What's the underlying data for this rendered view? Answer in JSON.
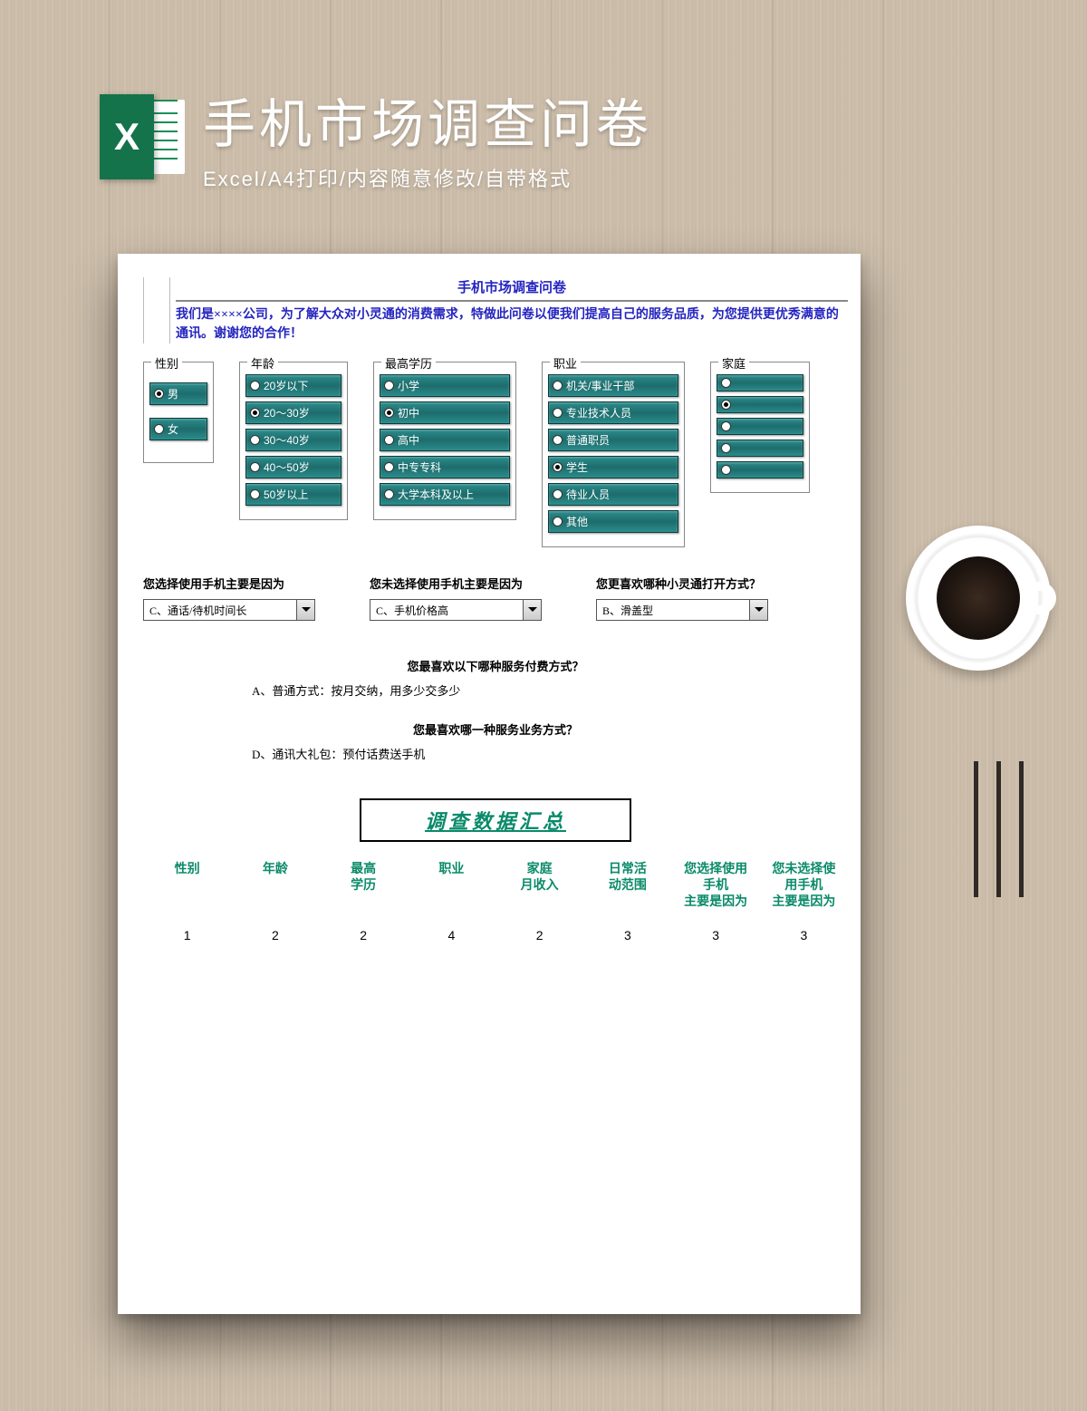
{
  "header": {
    "icon_letter": "X",
    "title": "手机市场调查问卷",
    "subtitle": "Excel/A4打印/内容随意修改/自带格式"
  },
  "doc": {
    "title": "手机市场调查问卷",
    "intro": "我们是××××公司，为了解大众对小灵通的消费需求，特做此问卷以便我们提高自己的服务品质，为您提供更优秀满意的通讯。谢谢您的合作！"
  },
  "groups": {
    "gender": {
      "legend": "性别",
      "opts": [
        "男",
        "女"
      ],
      "selected": 0
    },
    "age": {
      "legend": "年龄",
      "opts": [
        "20岁以下",
        "20～30岁",
        "30～40岁",
        "40～50岁",
        "50岁以上"
      ],
      "selected": 1
    },
    "edu": {
      "legend": "最高学历",
      "opts": [
        "小学",
        "初中",
        "高中",
        "中专专科",
        "大学本科及以上"
      ],
      "selected": 1
    },
    "job": {
      "legend": "职业",
      "opts": [
        "机关/事业干部",
        "专业技术人员",
        "普通职员",
        "学生",
        "待业人员",
        "其他"
      ],
      "selected": 3
    },
    "income": {
      "legend": "家庭",
      "opts": [
        "",
        "",
        "",
        "",
        ""
      ],
      "selected": 1
    }
  },
  "dropdowns": {
    "q1": {
      "label": "您选择使用手机主要是因为",
      "value": "C、通话/待机时间长"
    },
    "q2": {
      "label": "您未选择使用手机主要是因为",
      "value": "C、手机价格高"
    },
    "q3": {
      "label": "您更喜欢哪种小灵通打开方式？",
      "value": "B、滑盖型"
    }
  },
  "qa": {
    "q1": {
      "q": "您最喜欢以下哪种服务付费方式？",
      "a": "A、普通方式：按月交纳，用多少交多少"
    },
    "q2": {
      "q": "您最喜欢哪一种服务业务方式？",
      "a": "D、通讯大礼包：预付话费送手机"
    }
  },
  "summary": {
    "title": "调查数据汇总",
    "columns": [
      "性别",
      "年龄",
      "最高\n学历",
      "职业",
      "家庭\n月收入",
      "日常活\n动范围",
      "您选择使用\n手机\n主要是因为",
      "您未选择使\n用手机\n主要是因为"
    ],
    "row": [
      "1",
      "2",
      "2",
      "4",
      "2",
      "3",
      "3",
      "3"
    ]
  },
  "colors": {
    "teal_btn": "#2b8c8c",
    "doc_blue": "#2424c0",
    "summary_green": "#0a8a6a",
    "excel_green": "#15734b"
  }
}
